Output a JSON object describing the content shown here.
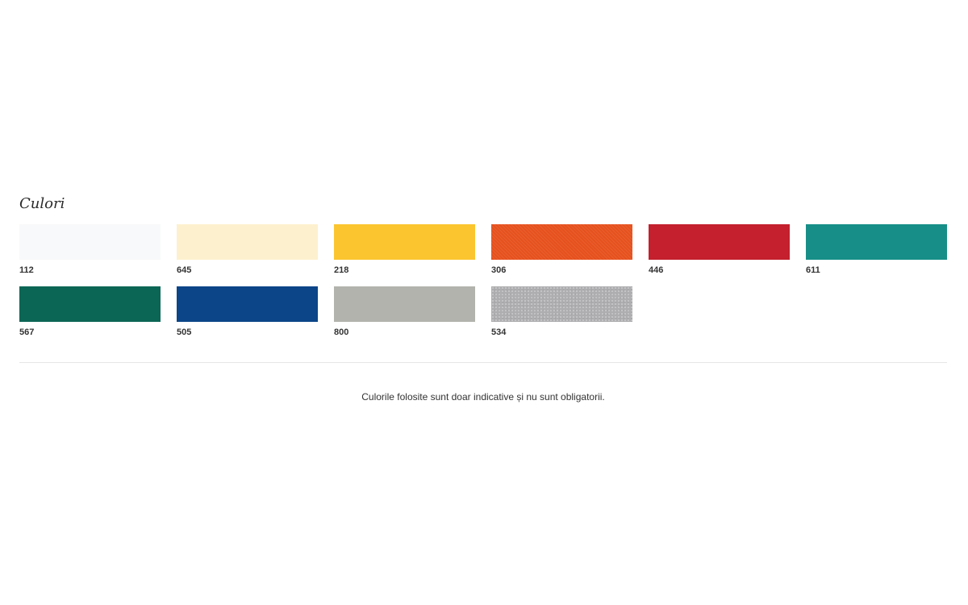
{
  "section": {
    "title": "Culori"
  },
  "swatches": [
    {
      "code": "112",
      "color": "#f8f9fa",
      "texture": "none"
    },
    {
      "code": "645",
      "color": "#fdf0cf",
      "texture": "none"
    },
    {
      "code": "218",
      "color": "#fbc52f",
      "texture": "none"
    },
    {
      "code": "306",
      "color": "#e6511d",
      "texture": "woven"
    },
    {
      "code": "446",
      "color": "#c4202d",
      "texture": "none"
    },
    {
      "code": "611",
      "color": "#178f88",
      "texture": "none"
    },
    {
      "code": "567",
      "color": "#0c6655",
      "texture": "none"
    },
    {
      "code": "505",
      "color": "#0c4588",
      "texture": "none"
    },
    {
      "code": "800",
      "color": "#b3b3ae",
      "texture": "none"
    },
    {
      "code": "534",
      "color": "#aeaeb0",
      "texture": "speckled"
    }
  ],
  "disclaimer": "Culorile folosite sunt doar indicative și nu sunt obligatorii."
}
